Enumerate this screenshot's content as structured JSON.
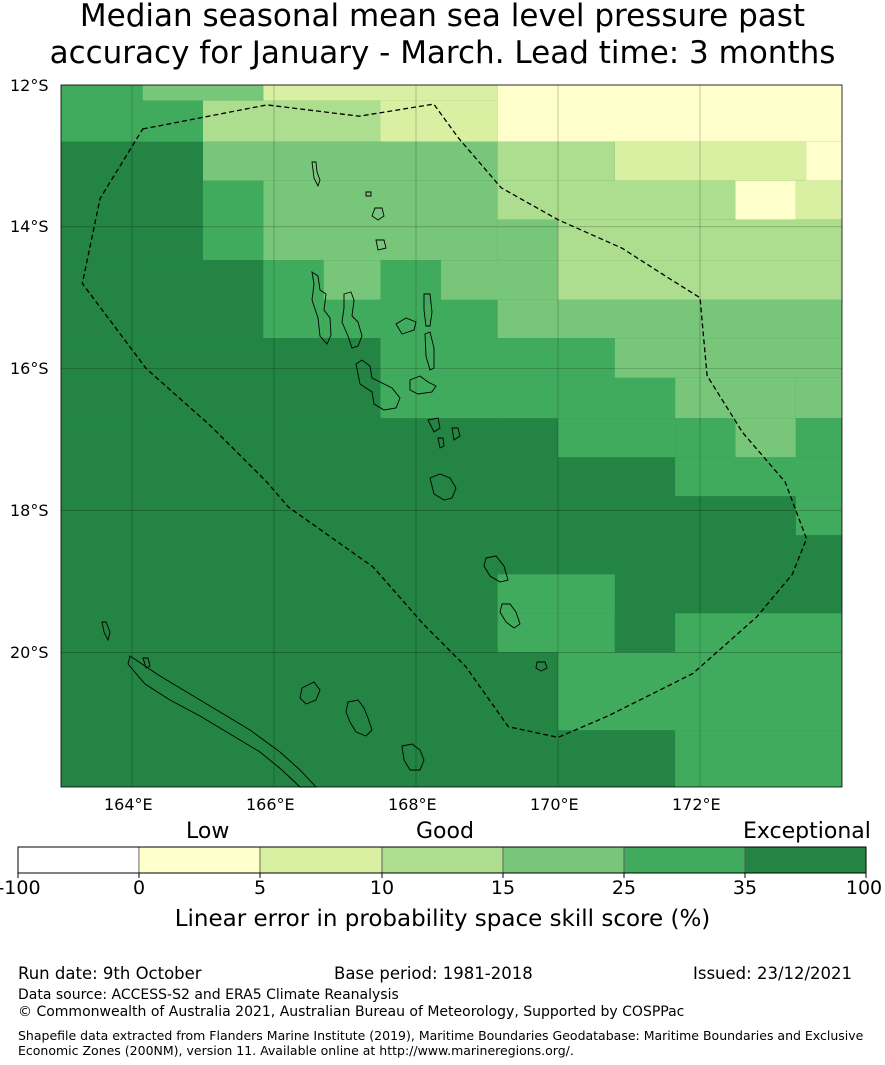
{
  "title": {
    "line1": "Median seasonal mean sea level pressure past",
    "line2": "accuracy for January - March. Lead time: 3 months"
  },
  "map": {
    "lat_labels": [
      "12°S",
      "14°S",
      "16°S",
      "18°S",
      "20°S"
    ],
    "lon_labels": [
      "164°E",
      "166°E",
      "168°E",
      "170°E",
      "172°E"
    ],
    "lon_range": [
      163.0,
      174.0
    ],
    "lat_range": [
      -21.9,
      -12.0
    ],
    "grid_lons": [
      164,
      166,
      168,
      170,
      172
    ],
    "grid_lats": [
      -12,
      -14,
      -16,
      -18,
      -20
    ],
    "boundary_style": "dashed",
    "eez_boundary": [
      [
        164.15,
        -12.62
      ],
      [
        165.9,
        -12.28
      ],
      [
        167.2,
        -12.44
      ],
      [
        168.25,
        -12.27
      ],
      [
        168.6,
        -12.75
      ],
      [
        169.2,
        -13.45
      ],
      [
        170.0,
        -13.9
      ],
      [
        170.9,
        -14.3
      ],
      [
        171.6,
        -14.75
      ],
      [
        172.0,
        -15.0
      ],
      [
        172.1,
        -16.1
      ],
      [
        172.6,
        -16.9
      ],
      [
        173.2,
        -17.6
      ],
      [
        173.5,
        -18.4
      ],
      [
        173.3,
        -18.9
      ],
      [
        172.8,
        -19.5
      ],
      [
        171.9,
        -20.3
      ],
      [
        170.7,
        -20.9
      ],
      [
        170.0,
        -21.2
      ],
      [
        169.3,
        -21.05
      ],
      [
        168.7,
        -20.2
      ],
      [
        168.1,
        -19.6
      ],
      [
        167.4,
        -18.8
      ],
      [
        166.2,
        -17.95
      ],
      [
        165.9,
        -17.6
      ],
      [
        165.1,
        -16.8
      ],
      [
        164.2,
        -16.0
      ],
      [
        163.3,
        -14.8
      ],
      [
        163.55,
        -13.6
      ],
      [
        164.15,
        -12.62
      ]
    ],
    "skill_cells": [
      {
        "lon": [
          163.0,
          164.15
        ],
        "lat": [
          -12.0,
          -12.8
        ],
        "cls": 5
      },
      {
        "lon": [
          164.15,
          165.85
        ],
        "lat": [
          -12.0,
          -12.22
        ],
        "cls": 4
      },
      {
        "lon": [
          165.85,
          167.5
        ],
        "lat": [
          -12.0,
          -12.22
        ],
        "cls": 2
      },
      {
        "lon": [
          167.5,
          169.15
        ],
        "lat": [
          -12.0,
          -12.22
        ],
        "cls": 2
      },
      {
        "lon": [
          169.15,
          174.0
        ],
        "lat": [
          -12.0,
          -12.8
        ],
        "cls": 1
      },
      {
        "lon": [
          164.15,
          165.0
        ],
        "lat": [
          -12.22,
          -13.35
        ],
        "cls": 5
      },
      {
        "lon": [
          165.0,
          167.5
        ],
        "lat": [
          -12.22,
          -12.8
        ],
        "cls": 3
      },
      {
        "lon": [
          167.5,
          169.15
        ],
        "lat": [
          -12.22,
          -12.8
        ],
        "cls": 2
      },
      {
        "lon": [
          165.0,
          167.5
        ],
        "lat": [
          -12.8,
          -13.35
        ],
        "cls": 4
      },
      {
        "lon": [
          167.5,
          169.15
        ],
        "lat": [
          -12.8,
          -13.35
        ],
        "cls": 4
      },
      {
        "lon": [
          169.15,
          170.8
        ],
        "lat": [
          -12.8,
          -13.35
        ],
        "cls": 3
      },
      {
        "lon": [
          170.8,
          172.5
        ],
        "lat": [
          -12.8,
          -13.35
        ],
        "cls": 2
      },
      {
        "lon": [
          172.5,
          173.5
        ],
        "lat": [
          -12.8,
          -13.35
        ],
        "cls": 2
      },
      {
        "lon": [
          173.5,
          174.0
        ],
        "lat": [
          -12.8,
          -13.35
        ],
        "cls": 1
      },
      {
        "lon": [
          163.0,
          165.0
        ],
        "lat": [
          -12.8,
          -14.47
        ],
        "cls": 6
      },
      {
        "lon": [
          165.0,
          165.85
        ],
        "lat": [
          -13.35,
          -14.47
        ],
        "cls": 5
      },
      {
        "lon": [
          165.85,
          169.15
        ],
        "lat": [
          -13.35,
          -14.47
        ],
        "cls": 4
      },
      {
        "lon": [
          169.15,
          170.0
        ],
        "lat": [
          -13.35,
          -13.9
        ],
        "cls": 3
      },
      {
        "lon": [
          170.0,
          172.5
        ],
        "lat": [
          -13.35,
          -13.9
        ],
        "cls": 3
      },
      {
        "lon": [
          172.5,
          173.35
        ],
        "lat": [
          -13.35,
          -13.9
        ],
        "cls": 1
      },
      {
        "lon": [
          173.35,
          174.0
        ],
        "lat": [
          -13.35,
          -13.9
        ],
        "cls": 2
      },
      {
        "lon": [
          169.15,
          170.0
        ],
        "lat": [
          -13.9,
          -14.47
        ],
        "cls": 4
      },
      {
        "lon": [
          170.0,
          174.0
        ],
        "lat": [
          -13.9,
          -14.47
        ],
        "cls": 3
      },
      {
        "lon": [
          163.0,
          165.85
        ],
        "lat": [
          -14.47,
          -15.57
        ],
        "cls": 6
      },
      {
        "lon": [
          165.85,
          166.7
        ],
        "lat": [
          -14.47,
          -15.57
        ],
        "cls": 5
      },
      {
        "lon": [
          166.7,
          167.5
        ],
        "lat": [
          -14.47,
          -15.03
        ],
        "cls": 4
      },
      {
        "lon": [
          167.5,
          168.35
        ],
        "lat": [
          -14.47,
          -15.03
        ],
        "cls": 5
      },
      {
        "lon": [
          168.35,
          170.0
        ],
        "lat": [
          -14.47,
          -15.03
        ],
        "cls": 4
      },
      {
        "lon": [
          170.0,
          172.5
        ],
        "lat": [
          -14.47,
          -15.03
        ],
        "cls": 3
      },
      {
        "lon": [
          172.5,
          174.0
        ],
        "lat": [
          -14.47,
          -15.03
        ],
        "cls": 3
      },
      {
        "lon": [
          166.7,
          169.15
        ],
        "lat": [
          -15.03,
          -15.57
        ],
        "cls": 5
      },
      {
        "lon": [
          169.15,
          174.0
        ],
        "lat": [
          -15.03,
          -15.57
        ],
        "cls": 4
      },
      {
        "lon": [
          163.0,
          167.5
        ],
        "lat": [
          -15.57,
          -16.7
        ],
        "cls": 6
      },
      {
        "lon": [
          167.5,
          170.8
        ],
        "lat": [
          -15.57,
          -16.13
        ],
        "cls": 5
      },
      {
        "lon": [
          170.8,
          174.0
        ],
        "lat": [
          -15.57,
          -16.13
        ],
        "cls": 4
      },
      {
        "lon": [
          167.5,
          169.15
        ],
        "lat": [
          -16.13,
          -16.7
        ],
        "cls": 5
      },
      {
        "lon": [
          169.15,
          171.65
        ],
        "lat": [
          -16.13,
          -16.7
        ],
        "cls": 5
      },
      {
        "lon": [
          171.65,
          173.35
        ],
        "lat": [
          -16.13,
          -16.7
        ],
        "cls": 4
      },
      {
        "lon": [
          173.35,
          174.0
        ],
        "lat": [
          -16.13,
          -16.7
        ],
        "cls": 4
      },
      {
        "lon": [
          163.0,
          169.15
        ],
        "lat": [
          -16.7,
          -21.9
        ],
        "cls": 6
      },
      {
        "lon": [
          169.15,
          170.0
        ],
        "lat": [
          -16.7,
          -17.25
        ],
        "cls": 6
      },
      {
        "lon": [
          170.0,
          171.65
        ],
        "lat": [
          -16.7,
          -17.25
        ],
        "cls": 5
      },
      {
        "lon": [
          171.65,
          172.5
        ],
        "lat": [
          -16.7,
          -17.25
        ],
        "cls": 5
      },
      {
        "lon": [
          172.5,
          173.35
        ],
        "lat": [
          -16.7,
          -17.25
        ],
        "cls": 4
      },
      {
        "lon": [
          173.35,
          174.0
        ],
        "lat": [
          -16.7,
          -17.25
        ],
        "cls": 5
      },
      {
        "lon": [
          169.15,
          170.0
        ],
        "lat": [
          -17.25,
          -19.93
        ],
        "cls": 6
      },
      {
        "lon": [
          170.0,
          171.65
        ],
        "lat": [
          -17.25,
          -17.8
        ],
        "cls": 6
      },
      {
        "lon": [
          171.65,
          174.0
        ],
        "lat": [
          -17.25,
          -17.8
        ],
        "cls": 5
      },
      {
        "lon": [
          170.0,
          173.35
        ],
        "lat": [
          -17.8,
          -18.35
        ],
        "cls": 6
      },
      {
        "lon": [
          173.35,
          174.0
        ],
        "lat": [
          -17.8,
          -18.35
        ],
        "cls": 5
      },
      {
        "lon": [
          170.0,
          174.0
        ],
        "lat": [
          -18.35,
          -19.45
        ],
        "cls": 6
      },
      {
        "lon": [
          169.15,
          170.8
        ],
        "lat": [
          -19.45,
          -20.0
        ],
        "cls": 5
      },
      {
        "lon": [
          170.8,
          171.65
        ],
        "lat": [
          -19.45,
          -20.0
        ],
        "cls": 6
      },
      {
        "lon": [
          171.65,
          174.0
        ],
        "lat": [
          -19.45,
          -20.0
        ],
        "cls": 5
      },
      {
        "lon": [
          169.15,
          170.0
        ],
        "lat": [
          -18.9,
          -19.45
        ],
        "cls": 5
      },
      {
        "lon": [
          170.0,
          170.8
        ],
        "lat": [
          -18.9,
          -19.45
        ],
        "cls": 5
      },
      {
        "lon": [
          170.0,
          174.0
        ],
        "lat": [
          -20.0,
          -21.1
        ],
        "cls": 5
      },
      {
        "lon": [
          170.0,
          171.65
        ],
        "lat": [
          -21.1,
          -21.9
        ],
        "cls": 6
      },
      {
        "lon": [
          171.65,
          174.0
        ],
        "lat": [
          -21.1,
          -21.9
        ],
        "cls": 5
      }
    ]
  },
  "colorbar": {
    "categories": [
      "Low",
      "Good",
      "Exceptional"
    ],
    "ticks": [
      "-100",
      "0",
      "5",
      "10",
      "15",
      "25",
      "35",
      "100"
    ],
    "colors": [
      "#ffffff",
      "#ffffcc",
      "#d9f0a3",
      "#addd8e",
      "#78c679",
      "#41ab5d",
      "#238443"
    ],
    "label": "Linear error in probability space skill score (%)"
  },
  "footer": {
    "run_date": "Run date: 9th October",
    "base_period": "Base period: 1981-2018",
    "issued": "Issued: 23/12/2021",
    "data_source": "Data source: ACCESS-S2 and ERA5 Climate Reanalysis",
    "copyright": "© Commonwealth of Australia 2021, Australian Bureau of Meteorology, Supported by COSPPac",
    "shapefile_line1": "Shapefile data extracted from Flanders Marine Institute (2019), Maritime Boundaries Geodatabase: Maritime Boundaries and Exclusive",
    "shapefile_line2": "Economic Zones (200NM), version 11. Available online at http://www.marineregions.org/."
  }
}
